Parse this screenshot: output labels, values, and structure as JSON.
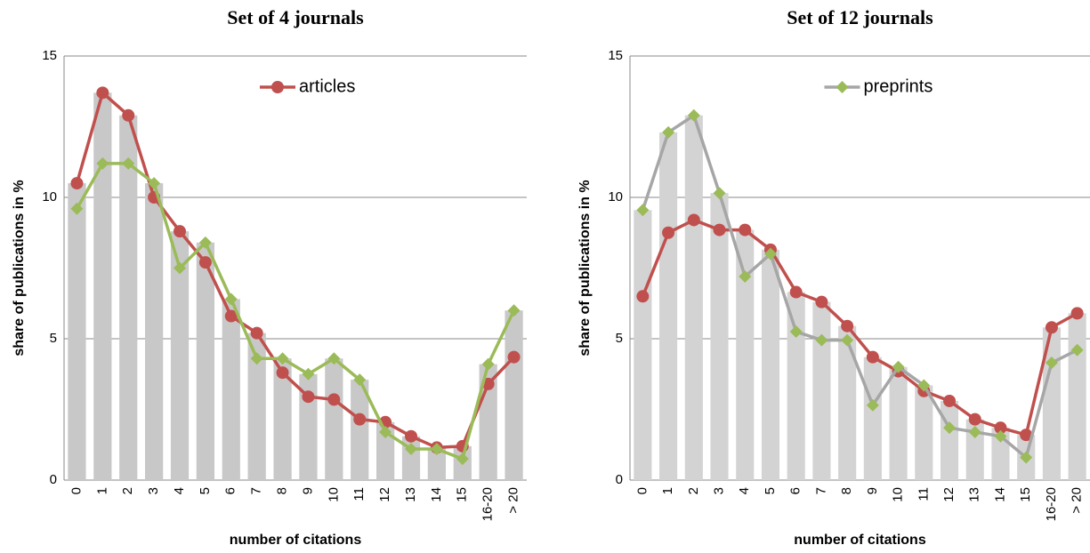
{
  "chart_data": [
    {
      "type": "combo",
      "title": "Set of 4 journals",
      "xlabel": "number of citations",
      "ylabel": "share of publications in %",
      "categories": [
        "0",
        "1",
        "2",
        "3",
        "4",
        "5",
        "6",
        "7",
        "8",
        "9",
        "10",
        "11",
        "12",
        "13",
        "14",
        "15",
        "16-20",
        "> 20"
      ],
      "ylim": [
        0,
        15
      ],
      "yticks": [
        0,
        5,
        10,
        15
      ],
      "grid": true,
      "legend": "upper center",
      "series": [
        {
          "type": "bar",
          "color": "#c8c8c8",
          "values": [
            10.5,
            13.7,
            12.9,
            10.5,
            8.8,
            8.4,
            6.4,
            5.2,
            4.3,
            3.75,
            4.3,
            3.55,
            2.05,
            1.55,
            1.15,
            1.2,
            4.1,
            6.0
          ]
        },
        {
          "type": "line",
          "name": "articles",
          "color": "#c0504d",
          "marker": "circle",
          "marker_color": "#c0504d",
          "values": [
            10.5,
            13.7,
            12.9,
            10.0,
            8.8,
            7.7,
            5.8,
            5.2,
            3.8,
            2.95,
            2.85,
            2.15,
            2.05,
            1.55,
            1.15,
            1.2,
            3.4,
            4.35
          ]
        },
        {
          "type": "line",
          "color": "#9bbb59",
          "marker": "diamond",
          "marker_color": "#9bbb59",
          "values": [
            9.6,
            11.2,
            11.2,
            10.5,
            7.5,
            8.4,
            6.4,
            4.3,
            4.3,
            3.75,
            4.3,
            3.55,
            1.7,
            1.1,
            1.1,
            0.75,
            4.1,
            6.0
          ]
        }
      ]
    },
    {
      "type": "combo",
      "title": "Set of 12 journals",
      "xlabel": "number of citations",
      "ylabel": "share of publications in %",
      "categories": [
        "0",
        "1",
        "2",
        "3",
        "4",
        "5",
        "6",
        "7",
        "8",
        "9",
        "10",
        "11",
        "12",
        "13",
        "14",
        "15",
        "16-20",
        "> 20"
      ],
      "ylim": [
        0,
        15
      ],
      "yticks": [
        0,
        5,
        10,
        15
      ],
      "grid": true,
      "legend": "upper center",
      "series": [
        {
          "type": "bar",
          "color": "#d3d3d3",
          "values": [
            9.55,
            12.3,
            12.9,
            10.15,
            8.85,
            8.15,
            6.65,
            6.3,
            5.45,
            4.35,
            4.0,
            3.35,
            2.8,
            2.15,
            1.85,
            1.6,
            5.4,
            5.9
          ]
        },
        {
          "type": "line",
          "color": "#c0504d",
          "marker": "circle",
          "marker_color": "#c0504d",
          "values": [
            6.5,
            8.75,
            9.2,
            8.85,
            8.85,
            8.15,
            6.65,
            6.3,
            5.45,
            4.35,
            3.85,
            3.15,
            2.8,
            2.15,
            1.85,
            1.6,
            5.4,
            5.9
          ]
        },
        {
          "type": "line",
          "name": "preprints",
          "color": "#a6a6a6",
          "marker": "diamond",
          "marker_color": "#9bbb59",
          "values": [
            9.55,
            12.3,
            12.9,
            10.15,
            7.2,
            8.0,
            5.25,
            4.95,
            4.95,
            2.65,
            4.0,
            3.35,
            1.85,
            1.7,
            1.55,
            0.8,
            4.15,
            4.6
          ]
        }
      ]
    }
  ]
}
